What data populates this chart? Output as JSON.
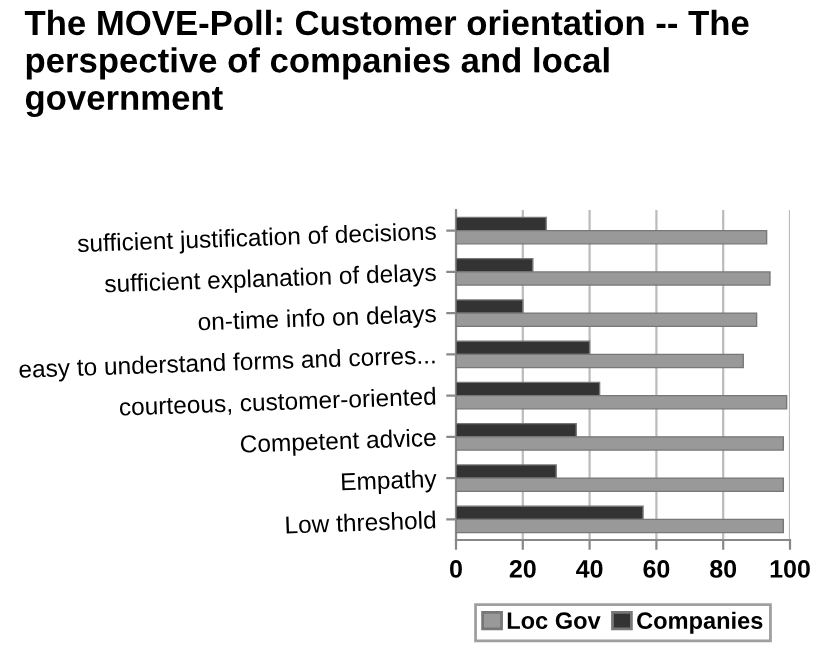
{
  "chart_data": {
    "type": "bar",
    "orientation": "horizontal",
    "title": "The MOVE-Poll: Customer orientation -- The perspective of companies and local government",
    "categories": [
      "sufficient justification of decisions",
      "sufficient explanation of delays",
      "on-time info on delays",
      "easy to understand forms and corres...",
      "courteous, customer-oriented",
      "Competent advice",
      "Empathy",
      "Low threshold"
    ],
    "series": [
      {
        "name": "Companies",
        "color": "#333333",
        "values": [
          27,
          23,
          20,
          40,
          43,
          36,
          30,
          56
        ]
      },
      {
        "name": "Loc Gov",
        "color": "#999999",
        "values": [
          93,
          94,
          90,
          86,
          99,
          98,
          98,
          98
        ]
      }
    ],
    "xlim": [
      0,
      100
    ],
    "xticks": [
      0,
      20,
      40,
      60,
      80,
      100
    ],
    "grid": "x",
    "legend": "bottom"
  }
}
